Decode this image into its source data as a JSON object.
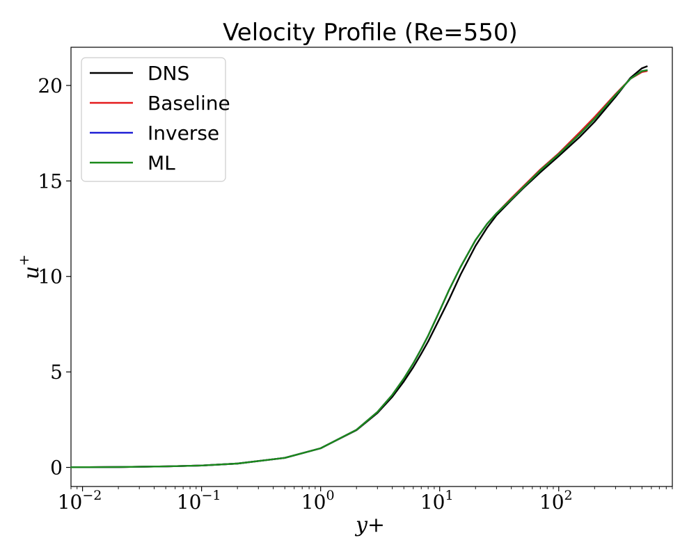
{
  "chart_data": {
    "type": "line",
    "title": "Velocity Profile (Re=550)",
    "xlabel": "y+",
    "ylabel": "u",
    "ylabel_superscript": "+",
    "xscale": "log",
    "xlim": [
      0.008,
      900
    ],
    "ylim": [
      -1,
      22
    ],
    "x_ticks": [
      {
        "base": "10",
        "exp": "−2",
        "value": 0.01
      },
      {
        "base": "10",
        "exp": "−1",
        "value": 0.1
      },
      {
        "base": "10",
        "exp": "0",
        "value": 1
      },
      {
        "base": "10",
        "exp": "1",
        "value": 10
      },
      {
        "base": "10",
        "exp": "2",
        "value": 100
      }
    ],
    "y_ticks": [
      {
        "label": "0",
        "value": 0
      },
      {
        "label": "5",
        "value": 5
      },
      {
        "label": "10",
        "value": 10
      },
      {
        "label": "15",
        "value": 15
      },
      {
        "label": "20",
        "value": 20
      }
    ],
    "grid": false,
    "legend_position": "top-left",
    "series": [
      {
        "name": "DNS",
        "color": "#000000",
        "x": [
          0.008,
          0.01,
          0.02,
          0.05,
          0.1,
          0.2,
          0.5,
          1,
          2,
          3,
          4,
          5,
          6,
          7,
          8,
          10,
          12,
          15,
          20,
          25,
          30,
          40,
          50,
          70,
          100,
          150,
          200,
          300,
          400,
          500,
          550
        ],
        "y": [
          0.008,
          0.01,
          0.02,
          0.05,
          0.1,
          0.2,
          0.5,
          1.0,
          1.95,
          2.85,
          3.7,
          4.5,
          5.25,
          5.95,
          6.6,
          7.8,
          8.8,
          10.1,
          11.6,
          12.55,
          13.2,
          14.0,
          14.6,
          15.45,
          16.3,
          17.3,
          18.1,
          19.4,
          20.4,
          20.9,
          21.0
        ]
      },
      {
        "name": "Baseline",
        "color": "#e41a1c",
        "x": [
          0.008,
          0.01,
          0.02,
          0.05,
          0.1,
          0.2,
          0.5,
          1,
          2,
          3,
          4,
          5,
          6,
          7,
          8,
          10,
          12,
          15,
          20,
          25,
          30,
          40,
          50,
          70,
          100,
          150,
          200,
          300,
          400,
          500,
          550
        ],
        "y": [
          0.008,
          0.01,
          0.02,
          0.05,
          0.1,
          0.2,
          0.5,
          1.0,
          1.97,
          2.9,
          3.8,
          4.65,
          5.45,
          6.2,
          6.9,
          8.2,
          9.3,
          10.5,
          11.9,
          12.75,
          13.3,
          14.1,
          14.7,
          15.6,
          16.45,
          17.55,
          18.35,
          19.55,
          20.35,
          20.7,
          20.75
        ]
      },
      {
        "name": "Inverse",
        "color": "#1f1fd6",
        "x": [
          0.008,
          0.01,
          0.02,
          0.05,
          0.1,
          0.2,
          0.5,
          1,
          2,
          3,
          4,
          5,
          6,
          7,
          8,
          10,
          12,
          15,
          20,
          25,
          30,
          40,
          50,
          70,
          100,
          150,
          200,
          300,
          400,
          500,
          550
        ],
        "y": [
          0.008,
          0.01,
          0.02,
          0.05,
          0.1,
          0.2,
          0.5,
          1.0,
          1.97,
          2.9,
          3.8,
          4.65,
          5.45,
          6.2,
          6.9,
          8.2,
          9.3,
          10.5,
          11.9,
          12.75,
          13.3,
          14.05,
          14.65,
          15.55,
          16.4,
          17.45,
          18.25,
          19.5,
          20.35,
          20.75,
          20.8
        ]
      },
      {
        "name": "ML",
        "color": "#1a8a1a",
        "x": [
          0.008,
          0.01,
          0.02,
          0.05,
          0.1,
          0.2,
          0.5,
          1,
          2,
          3,
          4,
          5,
          6,
          7,
          8,
          10,
          12,
          15,
          20,
          25,
          30,
          40,
          50,
          70,
          100,
          150,
          200,
          300,
          400,
          500,
          550
        ],
        "y": [
          0.008,
          0.01,
          0.02,
          0.05,
          0.1,
          0.2,
          0.5,
          1.0,
          1.97,
          2.9,
          3.8,
          4.65,
          5.45,
          6.2,
          6.9,
          8.2,
          9.3,
          10.5,
          11.9,
          12.75,
          13.3,
          14.05,
          14.65,
          15.55,
          16.4,
          17.45,
          18.25,
          19.5,
          20.35,
          20.75,
          20.8
        ]
      }
    ]
  }
}
